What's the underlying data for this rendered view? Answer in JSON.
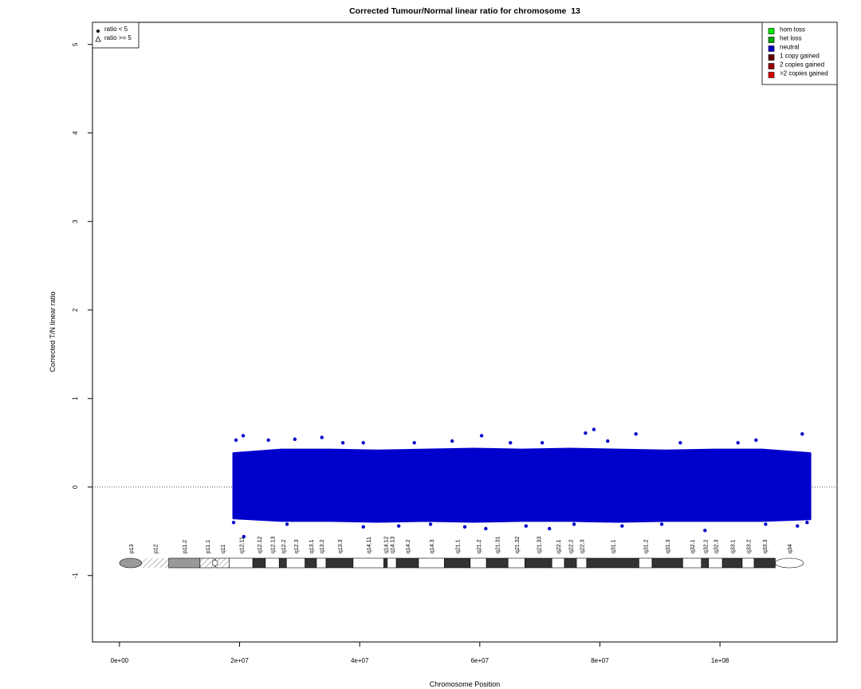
{
  "chart_data": {
    "type": "scatter",
    "title": "Corrected Tumour/Normal linear ratio for chromosome  13",
    "x_label": "Chromosome Position",
    "y_label": "Corrected T/N linear ratio",
    "xlim": [
      -4500000,
      119500000
    ],
    "ylim": [
      -1.75,
      5.25
    ],
    "xticks": [
      {
        "value": 0,
        "label": "0e+00"
      },
      {
        "value": 20000000,
        "label": "2e+07"
      },
      {
        "value": 40000000,
        "label": "4e+07"
      },
      {
        "value": 60000000,
        "label": "6e+07"
      },
      {
        "value": 80000000,
        "label": "8e+07"
      },
      {
        "value": 100000000,
        "label": "1e+08"
      }
    ],
    "yticks": [
      -1,
      0,
      1,
      2,
      3,
      4,
      5
    ],
    "hline": 0,
    "band": {
      "color": "#0000cc",
      "x": [
        19000000,
        27000000,
        35000000,
        43000000,
        51000000,
        59000000,
        67000000,
        75000000,
        83000000,
        91000000,
        99000000,
        107000000,
        115000000
      ],
      "upper": [
        0.38,
        0.42,
        0.42,
        0.41,
        0.42,
        0.43,
        0.42,
        0.43,
        0.42,
        0.41,
        0.42,
        0.42,
        0.38
      ],
      "lower": [
        -0.35,
        -0.38,
        -0.38,
        -0.39,
        -0.38,
        -0.39,
        -0.38,
        -0.38,
        -0.39,
        -0.38,
        -0.38,
        -0.38,
        -0.36
      ]
    },
    "series": [
      {
        "name": "neutral",
        "color": "#0000cc",
        "x": [
          20600000,
          20700000,
          79000000,
          77600000,
          60300000,
          86000000,
          113700000,
          97500000,
          61000000,
          71600000,
          40600000,
          33700000,
          29200000,
          24800000,
          37200000,
          40600000,
          49100000,
          55400000,
          65100000,
          70400000,
          81300000,
          93400000,
          103000000,
          106000000,
          19400000,
          19000000,
          27900000,
          46500000,
          51800000,
          57500000,
          67700000,
          75700000,
          83700000,
          90300000,
          107600000,
          112900000,
          114500000
        ],
        "values": [
          0.58,
          -0.56,
          0.65,
          0.61,
          0.58,
          0.6,
          0.6,
          -0.49,
          -0.47,
          -0.47,
          -0.45,
          0.56,
          0.54,
          0.53,
          0.5,
          0.5,
          0.5,
          0.52,
          0.5,
          0.5,
          0.52,
          0.5,
          0.5,
          0.53,
          0.53,
          -0.4,
          -0.42,
          -0.44,
          -0.42,
          -0.45,
          -0.44,
          -0.42,
          -0.44,
          -0.42,
          -0.42,
          -0.44,
          -0.4
        ]
      }
    ],
    "point_legend": [
      "ratio < 5",
      "ratio >= 5"
    ],
    "state_legend": [
      {
        "name": "hom loss",
        "color": "#00ee00"
      },
      {
        "name": "het loss",
        "color": "#00aa00"
      },
      {
        "name": "neutral",
        "color": "#0000cc"
      },
      {
        "name": "1 copy gained",
        "color": "#660000"
      },
      {
        "name": "2 copies gained",
        "color": "#990000"
      },
      {
        "name": ">2 copies gained",
        "color": "#dd0000"
      }
    ],
    "ideogram": [
      {
        "name": "p13",
        "start": 0,
        "end": 3700000,
        "color": "#999999"
      },
      {
        "name": "p12",
        "start": 3700000,
        "end": 8200000,
        "color": "stalk"
      },
      {
        "name": "p11.2",
        "start": 8200000,
        "end": 13400000,
        "color": "#999999"
      },
      {
        "name": "p11.1",
        "start": 13400000,
        "end": 15800000,
        "color": "acen"
      },
      {
        "name": "q11",
        "start": 16000000,
        "end": 18300000,
        "color": "acen"
      },
      {
        "name": "q12.11",
        "start": 18300000,
        "end": 22200000,
        "color": "#ffffff"
      },
      {
        "name": "q12.12",
        "start": 22200000,
        "end": 24300000,
        "color": "#333333"
      },
      {
        "name": "q12.13",
        "start": 24300000,
        "end": 26600000,
        "color": "#ffffff"
      },
      {
        "name": "q12.2",
        "start": 26600000,
        "end": 27800000,
        "color": "#333333"
      },
      {
        "name": "q12.3",
        "start": 27800000,
        "end": 30900000,
        "color": "#ffffff"
      },
      {
        "name": "q13.1",
        "start": 30900000,
        "end": 32800000,
        "color": "#333333"
      },
      {
        "name": "q13.2",
        "start": 32800000,
        "end": 34400000,
        "color": "#ffffff"
      },
      {
        "name": "q13.3",
        "start": 34400000,
        "end": 38900000,
        "color": "#333333"
      },
      {
        "name": "q14.11",
        "start": 38900000,
        "end": 44000000,
        "color": "#ffffff"
      },
      {
        "name": "q14.12",
        "start": 44000000,
        "end": 44600000,
        "color": "#333333"
      },
      {
        "name": "q14.13",
        "start": 44600000,
        "end": 46100000,
        "color": "#ffffff"
      },
      {
        "name": "q14.2",
        "start": 46100000,
        "end": 49800000,
        "color": "#333333"
      },
      {
        "name": "q14.3",
        "start": 49800000,
        "end": 54100000,
        "color": "#ffffff"
      },
      {
        "name": "q21.1",
        "start": 54100000,
        "end": 58400000,
        "color": "#333333"
      },
      {
        "name": "q21.2",
        "start": 58400000,
        "end": 61100000,
        "color": "#ffffff"
      },
      {
        "name": "q21.31",
        "start": 61100000,
        "end": 64700000,
        "color": "#333333"
      },
      {
        "name": "q21.32",
        "start": 64700000,
        "end": 67500000,
        "color": "#ffffff"
      },
      {
        "name": "q21.33",
        "start": 67500000,
        "end": 72000000,
        "color": "#333333"
      },
      {
        "name": "q22.1",
        "start": 72000000,
        "end": 74100000,
        "color": "#ffffff"
      },
      {
        "name": "q22.2",
        "start": 74100000,
        "end": 76100000,
        "color": "#333333"
      },
      {
        "name": "q22.3",
        "start": 76100000,
        "end": 77800000,
        "color": "#ffffff"
      },
      {
        "name": "q31.1",
        "start": 77800000,
        "end": 86500000,
        "color": "#333333"
      },
      {
        "name": "q31.2",
        "start": 86500000,
        "end": 88700000,
        "color": "#ffffff"
      },
      {
        "name": "q31.3",
        "start": 88700000,
        "end": 93800000,
        "color": "#333333"
      },
      {
        "name": "q32.1",
        "start": 93800000,
        "end": 96900000,
        "color": "#ffffff"
      },
      {
        "name": "q32.2",
        "start": 96900000,
        "end": 98100000,
        "color": "#333333"
      },
      {
        "name": "q32.3",
        "start": 98100000,
        "end": 100400000,
        "color": "#ffffff"
      },
      {
        "name": "q33.1",
        "start": 100400000,
        "end": 103700000,
        "color": "#333333"
      },
      {
        "name": "q33.2",
        "start": 103700000,
        "end": 105700000,
        "color": "#ffffff"
      },
      {
        "name": "q33.3",
        "start": 105700000,
        "end": 109200000,
        "color": "#333333"
      },
      {
        "name": "q34",
        "start": 109200000,
        "end": 113900000,
        "color": "#ffffff"
      }
    ]
  }
}
